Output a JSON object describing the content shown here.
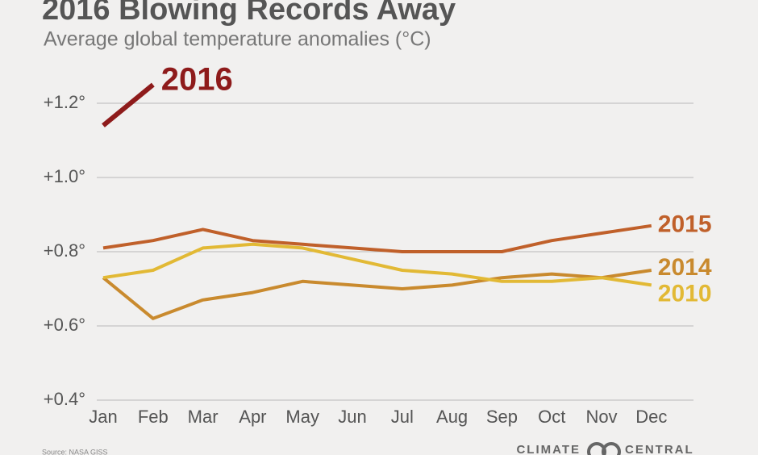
{
  "chart_data": {
    "type": "line",
    "title": "2016 Blowing Records Away",
    "subtitle": "Average global temperature anomalies (°C)",
    "categories": [
      "Jan",
      "Feb",
      "Mar",
      "Apr",
      "May",
      "Jun",
      "Jul",
      "Aug",
      "Sep",
      "Oct",
      "Nov",
      "Dec"
    ],
    "series": [
      {
        "name": "2016",
        "color": "#8e1b1b",
        "values": [
          1.14,
          1.25,
          null,
          null,
          null,
          null,
          null,
          null,
          null,
          null,
          null,
          null
        ]
      },
      {
        "name": "2015",
        "color": "#c0602a",
        "values": [
          0.81,
          0.83,
          0.86,
          0.83,
          0.82,
          0.81,
          0.8,
          0.8,
          0.8,
          0.83,
          0.85,
          0.87
        ]
      },
      {
        "name": "2014",
        "color": "#c98a2e",
        "values": [
          0.73,
          0.62,
          0.67,
          0.69,
          0.72,
          0.71,
          0.7,
          0.71,
          0.73,
          0.74,
          0.73,
          0.75
        ]
      },
      {
        "name": "2010",
        "color": "#e2b935",
        "values": [
          0.73,
          0.75,
          0.81,
          0.82,
          0.81,
          0.78,
          0.75,
          0.74,
          0.72,
          0.72,
          0.73,
          0.71
        ]
      }
    ],
    "ylim": [
      0.4,
      1.2
    ],
    "yticks": [
      {
        "value": 0.4,
        "label": "+0.4°"
      },
      {
        "value": 0.6,
        "label": "+0.6°"
      },
      {
        "value": 0.8,
        "label": "+0.8°"
      },
      {
        "value": 1.0,
        "label": "+1.0°"
      },
      {
        "value": 1.2,
        "label": "+1.2°"
      }
    ],
    "grid": true,
    "source": "Source: NASA GISS",
    "logo": [
      "CLIMATE",
      "CENTRAL"
    ]
  }
}
